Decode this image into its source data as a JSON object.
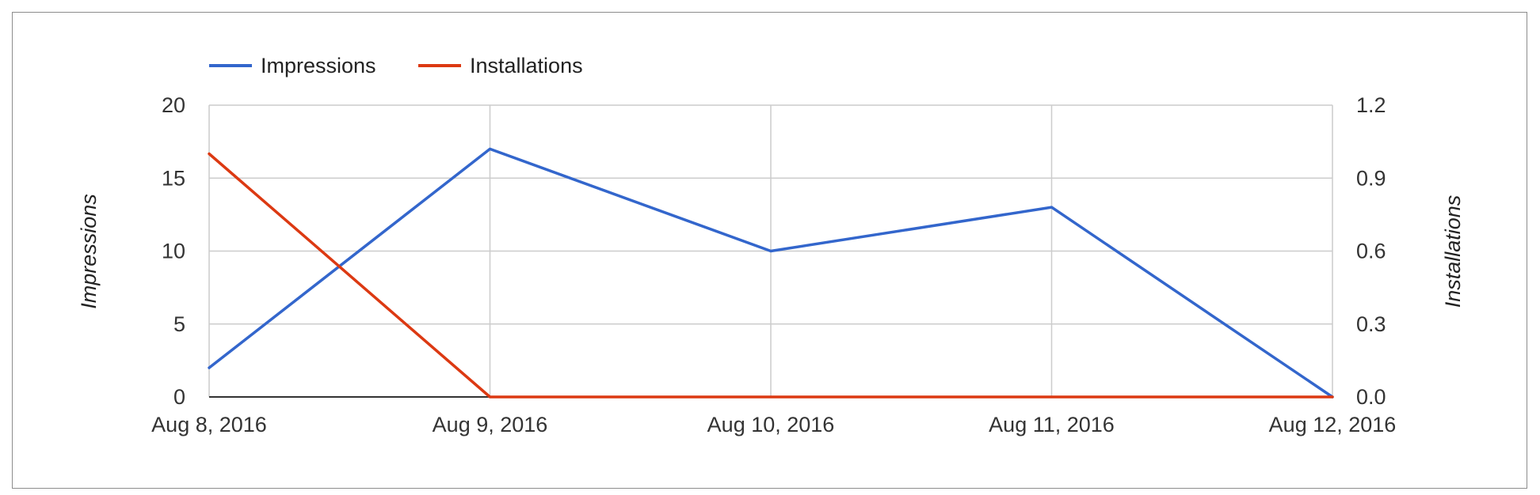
{
  "chart_data": {
    "type": "line",
    "categories": [
      "Aug 8, 2016",
      "Aug 9, 2016",
      "Aug 10, 2016",
      "Aug 11, 2016",
      "Aug 12, 2016"
    ],
    "series": [
      {
        "name": "Impressions",
        "axis": "left",
        "color": "#3366cc",
        "values": [
          2,
          17,
          10,
          13,
          0
        ]
      },
      {
        "name": "Installations",
        "axis": "right",
        "color": "#dc3912",
        "values": [
          1,
          0,
          0,
          0,
          0
        ]
      }
    ],
    "ylabel_left": "Impressions",
    "ylabel_right": "Installations",
    "ylim_left": [
      0,
      20
    ],
    "ylim_right": [
      0,
      1.2
    ],
    "yticks_left": [
      "0",
      "5",
      "10",
      "15",
      "20"
    ],
    "yticks_right": [
      "0.0",
      "0.3",
      "0.6",
      "0.9",
      "1.2"
    ],
    "legend_position": "top-left",
    "grid": true
  }
}
